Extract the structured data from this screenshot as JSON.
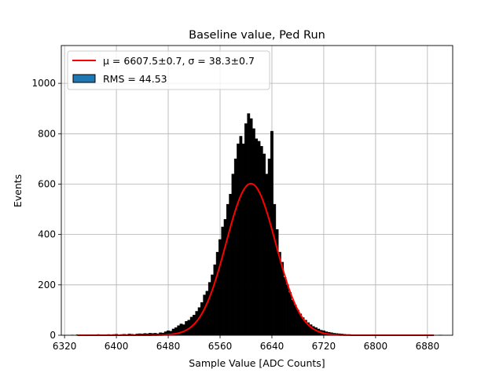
{
  "chart_data": {
    "type": "bar",
    "title": "Baseline value, Ped Run",
    "xlabel": "Sample Value [ADC Counts]",
    "ylabel": "Events",
    "xlim": [
      6315,
      6919
    ],
    "ylim": [
      0,
      1150
    ],
    "xticks": [
      6320,
      6400,
      6480,
      6560,
      6640,
      6720,
      6800,
      6880
    ],
    "yticks": [
      0,
      200,
      400,
      600,
      800,
      1000
    ],
    "grid": true,
    "legend_position": "top-left",
    "legend": [
      {
        "label": "μ = 6607.5±0.7, σ = 38.3±0.7",
        "color": "#ff0000",
        "kind": "line"
      },
      {
        "label": "RMS = 44.53",
        "color": "#1f77b4",
        "kind": "patch"
      }
    ],
    "histogram": {
      "bin_width": 4,
      "bin_start": 6330,
      "color": "#000000",
      "values": [
        1,
        0,
        2,
        1,
        1,
        2,
        0,
        1,
        2,
        1,
        3,
        2,
        1,
        2,
        3,
        2,
        3,
        4,
        2,
        3,
        4,
        3,
        5,
        4,
        3,
        5,
        6,
        5,
        7,
        6,
        8,
        7,
        8,
        6,
        10,
        9,
        14,
        18,
        16,
        25,
        30,
        38,
        45,
        42,
        55,
        60,
        72,
        80,
        95,
        110,
        130,
        160,
        175,
        210,
        240,
        280,
        330,
        380,
        430,
        460,
        520,
        560,
        640,
        700,
        760,
        790,
        760,
        840,
        880,
        860,
        820,
        780,
        770,
        750,
        720,
        640,
        700,
        810,
        520,
        420,
        330,
        290,
        230,
        200,
        170,
        140,
        120,
        100,
        85,
        70,
        60,
        50,
        42,
        35,
        30,
        25,
        20,
        18,
        14,
        12,
        10,
        8,
        7,
        6,
        5,
        4,
        3,
        3,
        2,
        2,
        1,
        2,
        1,
        1,
        0,
        1,
        1,
        0,
        1,
        0,
        1,
        0,
        1,
        0,
        0,
        1,
        0,
        1,
        0,
        0,
        1,
        0,
        0,
        1,
        0,
        0,
        0,
        1,
        0,
        0,
        0,
        0,
        1,
        0,
        0,
        0,
        0,
        0,
        0
      ]
    },
    "fit": {
      "type": "gaussian",
      "mu": 6607.5,
      "sigma": 38.3,
      "amplitude": 602,
      "x_range": [
        6340,
        6890
      ],
      "color": "#ff0000"
    }
  }
}
